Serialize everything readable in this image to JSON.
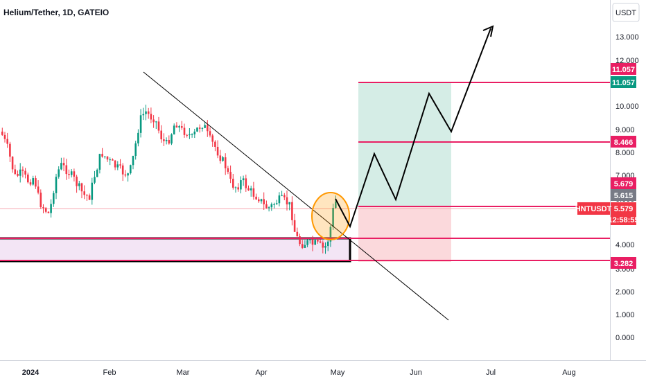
{
  "chart_data": {
    "type": "candlestick",
    "title": "Helium/Tether, 1D, GATEIO",
    "currency": "USDT",
    "y_scale": "log",
    "y_ticks": [
      "13.000",
      "12.000",
      "10.000",
      "9.000",
      "8.000",
      "7.000",
      "6.000",
      "4.000",
      "3.000",
      "2.000",
      "1.000",
      "0.000"
    ],
    "x_ticks": [
      "2024",
      "Feb",
      "Mar",
      "Apr",
      "May",
      "Jun",
      "Jul",
      "Aug"
    ],
    "symbol_tag": "HNTUSDT",
    "price_tags": [
      {
        "label": "11.057",
        "color": "#e91e63"
      },
      {
        "label": "11.057",
        "color": "#089981"
      },
      {
        "label": "8.466",
        "color": "#e91e63"
      },
      {
        "label": "5.679",
        "color": "#e91e63"
      },
      {
        "label": "5.615",
        "color": "#787b86"
      },
      {
        "label": "5.579",
        "color": "#f23645"
      },
      {
        "label": "12:58:55",
        "color": "#f23645"
      },
      {
        "label": "3.282",
        "color": "#e91e63"
      }
    ],
    "horizontal_levels": [
      11.057,
      8.466,
      5.615,
      4.25,
      3.282
    ],
    "position": {
      "entry": 5.615,
      "target": 11.057,
      "stop": 3.282
    },
    "last_price": 5.579,
    "colors": {
      "up": "#089981",
      "down": "#f23645",
      "level": "#e91e63",
      "profit_zone": "#d5ede6",
      "loss_zone": "#fbd9dc",
      "demand_zone": "#f3e5f5",
      "circle": "#ff9800"
    }
  }
}
